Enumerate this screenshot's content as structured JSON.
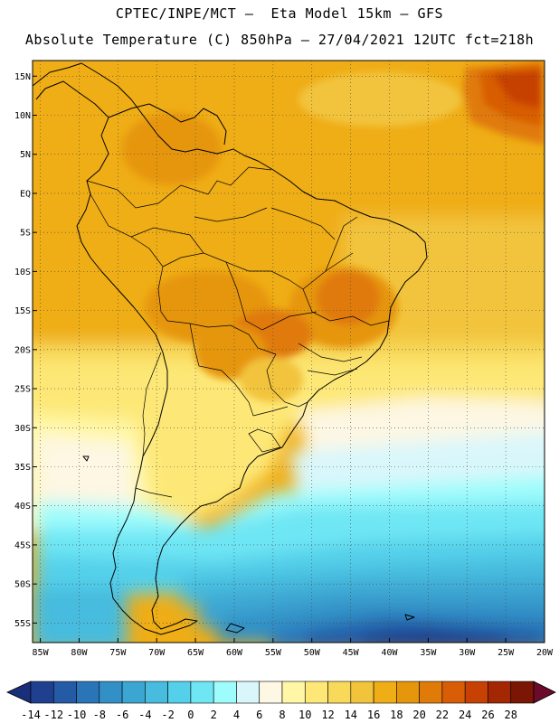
{
  "header": {
    "line1": "CPTEC/INPE/MCT –  Eta Model 15km – GFS",
    "line2": "Absolute Temperature (C) 850hPa – 27/04/2021 12UTC fct=218h"
  },
  "map": {
    "lat_labels": [
      "15N",
      "10N",
      "5N",
      "EQ",
      "5S",
      "10S",
      "15S",
      "20S",
      "25S",
      "30S",
      "35S",
      "40S",
      "45S",
      "50S",
      "55S"
    ],
    "lon_labels": [
      "85W",
      "80W",
      "75W",
      "70W",
      "65W",
      "60W",
      "55W",
      "50W",
      "45W",
      "40W",
      "35W",
      "30W",
      "25W",
      "20W"
    ],
    "lat_values": [
      15,
      10,
      5,
      0,
      -5,
      -10,
      -15,
      -20,
      -25,
      -30,
      -35,
      -40,
      -45,
      -50,
      -55
    ],
    "lon_values": [
      -85,
      -80,
      -75,
      -70,
      -65,
      -60,
      -55,
      -50,
      -45,
      -40,
      -35,
      -30,
      -25,
      -20
    ],
    "extent": {
      "lon_min": -86,
      "lon_max": -20,
      "lat_min": -57.5,
      "lat_max": 17
    }
  },
  "colorbar": {
    "labels": [
      "-14",
      "-12",
      "-10",
      "-8",
      "-6",
      "-4",
      "-2",
      "0",
      "2",
      "4",
      "6",
      "8",
      "10",
      "12",
      "14",
      "16",
      "18",
      "20",
      "22",
      "24",
      "26",
      "28"
    ],
    "colors": [
      "#1f3f8f",
      "#245aa6",
      "#2a75b8",
      "#3390c6",
      "#3ca6d2",
      "#47bcde",
      "#55d0ea",
      "#6ee6f4",
      "#9ffcfc",
      "#d9f7fb",
      "#fdf7e3",
      "#fff7a5",
      "#fde877",
      "#f8d95a",
      "#f2c43c",
      "#efad16",
      "#e6960a",
      "#e07a08",
      "#d85d06",
      "#c64103",
      "#a32703",
      "#7a1603"
    ]
  }
}
